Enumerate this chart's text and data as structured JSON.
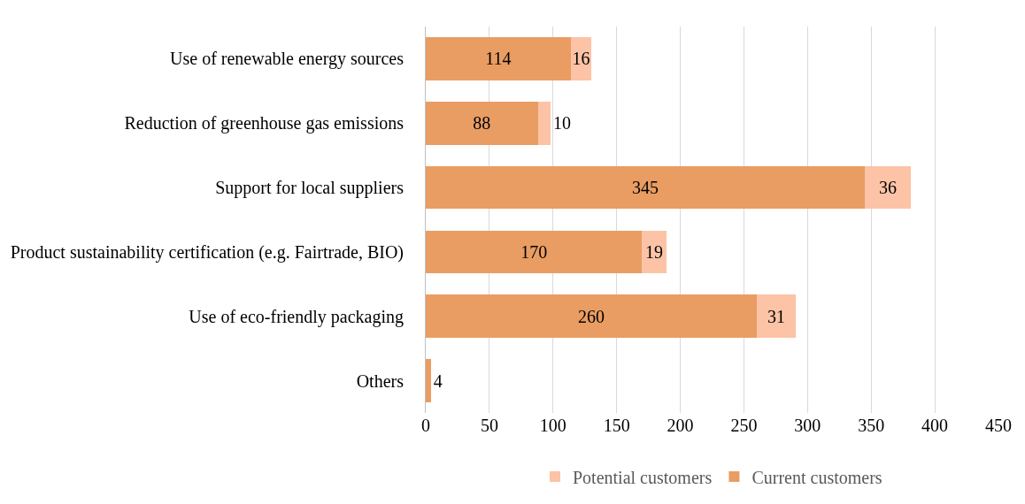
{
  "chart_data": {
    "type": "bar",
    "orientation": "horizontal",
    "stacked": true,
    "categories": [
      "Use of renewable energy sources",
      "Reduction of greenhouse gas emissions",
      "Support for local suppliers",
      "Product sustainability certification (e.g. Fairtrade, BIO)",
      "Use of eco-friendly packaging",
      "Others"
    ],
    "series": [
      {
        "name": "Current customers",
        "color": "#e99d63",
        "values": [
          114,
          88,
          345,
          170,
          260,
          4
        ]
      },
      {
        "name": "Potential customers",
        "color": "#fcc3a6",
        "values": [
          16,
          10,
          36,
          19,
          31,
          null
        ]
      }
    ],
    "xlim": [
      0,
      450
    ],
    "xticks": [
      0,
      50,
      100,
      150,
      200,
      250,
      300,
      350,
      400,
      450
    ],
    "grid": "x",
    "legend": "bottom",
    "data_labels": true
  }
}
